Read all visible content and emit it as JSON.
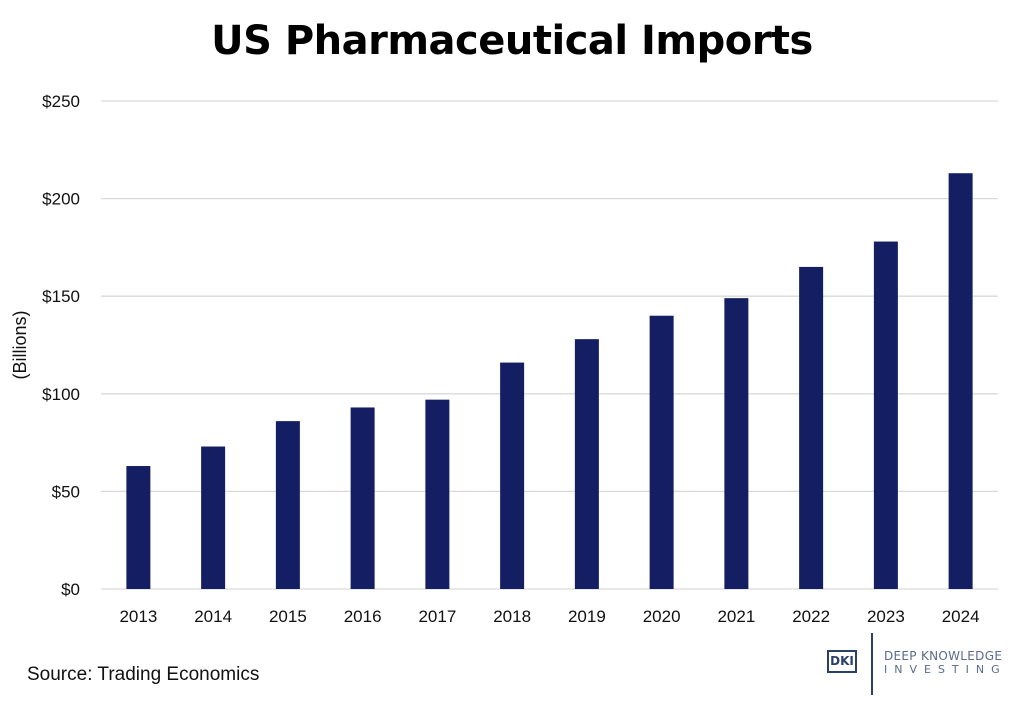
{
  "chart_data": {
    "type": "bar",
    "title": "US Pharmaceutical Imports",
    "xlabel": "",
    "ylabel": "(Billions)",
    "categories": [
      "2013",
      "2014",
      "2015",
      "2016",
      "2017",
      "2018",
      "2019",
      "2020",
      "2021",
      "2022",
      "2023",
      "2024"
    ],
    "values": [
      63,
      73,
      86,
      93,
      97,
      116,
      128,
      140,
      149,
      165,
      178,
      213
    ],
    "ylim": [
      0,
      250
    ],
    "yticks": [
      0,
      50,
      100,
      150,
      200,
      250
    ],
    "ytick_labels": [
      "$0",
      "$50",
      "$100",
      "$150",
      "$200",
      "$250"
    ],
    "grid": true,
    "legend": "none",
    "bar_color": "#141f63",
    "grid_color": "#d9d9d9"
  },
  "footer": {
    "source": "Source: Trading Economics"
  },
  "logo": {
    "mark": "DKI",
    "line1": "DEEP KNOWLEDGE",
    "line2": "INVESTING"
  }
}
